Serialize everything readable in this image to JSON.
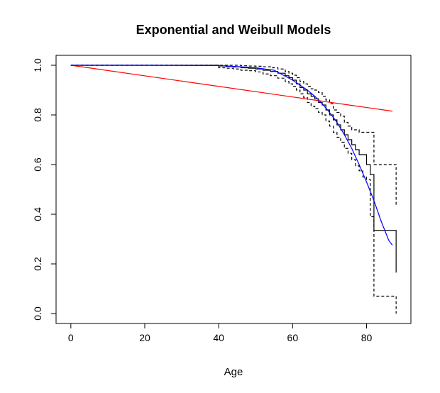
{
  "chart_data": {
    "type": "line",
    "title": "Exponential and Weibull Models",
    "xlabel": "Age",
    "ylabel": "",
    "xlim": [
      -4,
      92
    ],
    "ylim": [
      -0.04,
      1.04
    ],
    "xticks": [
      0,
      20,
      40,
      60,
      80
    ],
    "yticks": [
      0.0,
      0.2,
      0.4,
      0.6,
      0.8,
      1.0
    ],
    "xtick_labels": [
      "0",
      "20",
      "40",
      "60",
      "80"
    ],
    "ytick_labels": [
      "0.0",
      "0.2",
      "0.4",
      "0.6",
      "0.8",
      "1.0"
    ],
    "grid": false,
    "legend": "none",
    "series": [
      {
        "kind": "step",
        "color": "#000000",
        "dash": "solid",
        "x": [
          0,
          40,
          42,
          44,
          46,
          48,
          50,
          52,
          54,
          56,
          58,
          59,
          60,
          61,
          62,
          63,
          64,
          65,
          66,
          67,
          68,
          69,
          70,
          71,
          72,
          73,
          74,
          75,
          76,
          77,
          78,
          79,
          80,
          81,
          82,
          88
        ],
        "y": [
          1.0,
          0.997,
          0.995,
          0.993,
          0.99,
          0.988,
          0.985,
          0.98,
          0.975,
          0.968,
          0.958,
          0.95,
          0.94,
          0.925,
          0.91,
          0.9,
          0.885,
          0.875,
          0.865,
          0.85,
          0.84,
          0.82,
          0.8,
          0.78,
          0.76,
          0.74,
          0.72,
          0.7,
          0.68,
          0.66,
          0.64,
          0.64,
          0.6,
          0.56,
          0.335,
          0.165
        ]
      },
      {
        "kind": "step",
        "color": "#000000",
        "dash": "dashed",
        "x": [
          0,
          40,
          42,
          44,
          46,
          48,
          50,
          52,
          54,
          56,
          58,
          59,
          60,
          61,
          62,
          63,
          64,
          65,
          66,
          67,
          68,
          69,
          70,
          71,
          72,
          73,
          74,
          75,
          76,
          77,
          78,
          80,
          82,
          88
        ],
        "y": [
          1.0,
          1.0,
          1.0,
          1.0,
          0.998,
          0.997,
          0.996,
          0.994,
          0.99,
          0.985,
          0.975,
          0.968,
          0.96,
          0.95,
          0.935,
          0.925,
          0.915,
          0.905,
          0.9,
          0.89,
          0.875,
          0.86,
          0.845,
          0.82,
          0.81,
          0.795,
          0.77,
          0.755,
          0.74,
          0.74,
          0.73,
          0.73,
          0.6,
          0.43
        ]
      },
      {
        "kind": "step",
        "color": "#000000",
        "dash": "dashed",
        "x": [
          0,
          40,
          42,
          44,
          46,
          48,
          50,
          52,
          54,
          56,
          58,
          59,
          60,
          61,
          62,
          63,
          64,
          65,
          66,
          67,
          68,
          69,
          70,
          71,
          72,
          73,
          74,
          75,
          76,
          77,
          78,
          79,
          80,
          81,
          82,
          88
        ],
        "y": [
          1.0,
          0.99,
          0.988,
          0.985,
          0.98,
          0.978,
          0.973,
          0.965,
          0.958,
          0.948,
          0.935,
          0.925,
          0.915,
          0.9,
          0.885,
          0.87,
          0.85,
          0.835,
          0.825,
          0.81,
          0.8,
          0.775,
          0.755,
          0.73,
          0.71,
          0.69,
          0.665,
          0.645,
          0.62,
          0.595,
          0.575,
          0.55,
          0.54,
          0.39,
          0.07,
          0.0
        ]
      },
      {
        "kind": "line",
        "color": "#ff0000",
        "dash": "solid",
        "x": [
          0,
          87
        ],
        "y": [
          1.0,
          0.815
        ]
      },
      {
        "kind": "line",
        "color": "#0000ff",
        "dash": "solid",
        "x": [
          0,
          20,
          40,
          50,
          55,
          60,
          62,
          64,
          66,
          68,
          70,
          72,
          74,
          76,
          78,
          80,
          82,
          84,
          86,
          87
        ],
        "y": [
          1.0,
          1.0,
          0.999,
          0.99,
          0.98,
          0.94,
          0.92,
          0.9,
          0.875,
          0.845,
          0.81,
          0.77,
          0.72,
          0.665,
          0.6,
          0.53,
          0.455,
          0.37,
          0.295,
          0.275
        ]
      }
    ]
  }
}
